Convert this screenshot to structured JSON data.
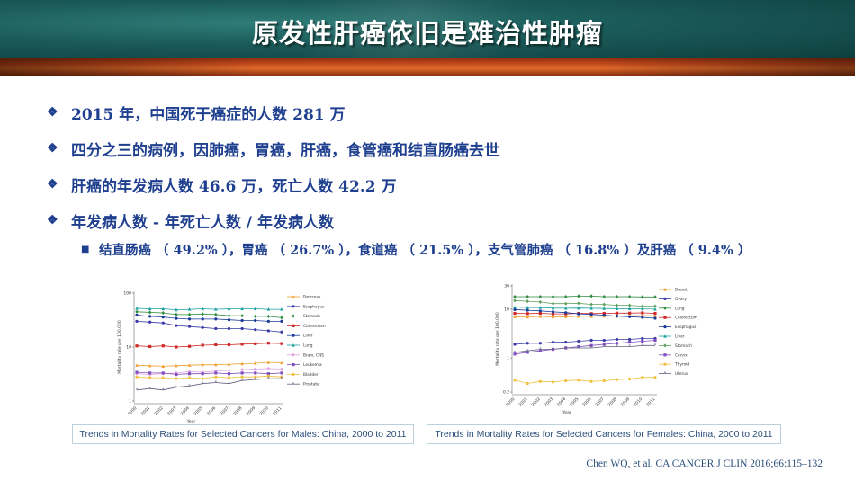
{
  "slide": {
    "title": "原发性肝癌依旧是难治性肿瘤",
    "bullets": [
      "2015 年，中国死于癌症的人数 281 万",
      "四分之三的病例，因肺癌，胃癌，肝癌，食管癌和结直肠癌去世",
      "肝癌的年发病人数 46.6 万，死亡人数 42.2 万",
      "年发病人数 - 年死亡人数 / 年发病人数"
    ],
    "sub_bullet": "结直肠癌 （ 49.2% ），胃癌 （ 26.7% ），食道癌 （ 21.5% ），支气管肺癌 （ 16.8% ）及肝癌 （ 9.4% ）",
    "bullet_marker": "❖",
    "sub_marker": "■",
    "citation": "Chen WQ, et al. CA CANCER J CLIN 2016;66:115–132"
  },
  "chart_data": [
    {
      "type": "line",
      "caption": "Trends in Mortality Rates for Selected Cancers for Males: China, 2000 to 2011",
      "xlabel": "Year",
      "ylabel": "Mortality rate per 100,000",
      "y_scale": "log",
      "ylim": [
        1,
        100
      ],
      "y_ticks": [
        "1",
        "10",
        "100"
      ],
      "x": [
        "2000",
        "2001",
        "2002",
        "2003",
        "2004",
        "2005",
        "2006",
        "2007",
        "2008",
        "2009",
        "2010",
        "2011"
      ],
      "legend_position": "right",
      "series": [
        {
          "name": "Pancreas",
          "color": "#f0a030",
          "marker": "triangle",
          "values": [
            4.6,
            4.5,
            4.4,
            4.5,
            4.6,
            4.7,
            4.7,
            4.8,
            4.9,
            5.0,
            5.2,
            5.1
          ]
        },
        {
          "name": "Esophagus",
          "color": "#3a3aa8",
          "marker": "circle",
          "values": [
            30,
            29,
            28,
            25,
            24,
            23,
            22,
            22,
            22,
            21,
            20,
            19
          ]
        },
        {
          "name": "Stomach",
          "color": "#2e8b3e",
          "marker": "diamond",
          "values": [
            45,
            44,
            43,
            40,
            40,
            41,
            40,
            38,
            38,
            37,
            37,
            35
          ]
        },
        {
          "name": "Colorectum",
          "color": "#d02828",
          "marker": "square",
          "values": [
            10.5,
            10.2,
            10.5,
            10.0,
            10.3,
            10.8,
            11.0,
            11.0,
            11.3,
            11.5,
            11.8,
            11.6
          ]
        },
        {
          "name": "Liver",
          "color": "#1a3a9a",
          "marker": "circle",
          "values": [
            39,
            37,
            36,
            34,
            33,
            33,
            33,
            32,
            31,
            31,
            30,
            30
          ]
        },
        {
          "name": "Lung",
          "color": "#1aa0a0",
          "marker": "triangle",
          "values": [
            52,
            51,
            51,
            49,
            50,
            51,
            50,
            51,
            51,
            51,
            50,
            50
          ]
        },
        {
          "name": "Brain, CNS",
          "color": "#e0a0e0",
          "marker": "diamond",
          "values": [
            3.2,
            3.1,
            3.2,
            3.3,
            3.5,
            3.4,
            3.6,
            3.7,
            3.8,
            3.9,
            4.0,
            3.9
          ]
        },
        {
          "name": "Leukemia",
          "color": "#8050c0",
          "marker": "square",
          "values": [
            3.4,
            3.3,
            3.3,
            3.1,
            3.2,
            3.2,
            3.3,
            3.2,
            3.3,
            3.3,
            3.2,
            3.3
          ]
        },
        {
          "name": "Bladder",
          "color": "#f0c040",
          "marker": "circle",
          "values": [
            2.8,
            2.7,
            2.7,
            2.6,
            2.7,
            2.6,
            2.8,
            2.7,
            2.8,
            2.8,
            2.9,
            2.8
          ]
        },
        {
          "name": "Prostate",
          "color": "#606080",
          "marker": "star",
          "values": [
            1.6,
            1.7,
            1.6,
            1.8,
            1.9,
            2.1,
            2.2,
            2.1,
            2.4,
            2.5,
            2.6,
            2.6
          ]
        }
      ]
    },
    {
      "type": "line",
      "caption": "Trends in Mortality Rates for Selected Cancers for Females: China, 2000 to 2011",
      "xlabel": "Year",
      "ylabel": "Mortality rate per 100,000",
      "y_scale": "log",
      "ylim": [
        0.2,
        30
      ],
      "y_ticks": [
        "0.2",
        "1",
        "10",
        "30"
      ],
      "x": [
        "2000",
        "2001",
        "2002",
        "2003",
        "2004",
        "2005",
        "2006",
        "2007",
        "2008",
        "2009",
        "2010",
        "2011"
      ],
      "legend_position": "right",
      "series": [
        {
          "name": "Breast",
          "color": "#f0a030",
          "marker": "triangle",
          "values": [
            7.0,
            6.9,
            7.1,
            6.9,
            7.0,
            7.1,
            7.1,
            7.2,
            7.2,
            7.3,
            7.4,
            7.3
          ]
        },
        {
          "name": "Ovary",
          "color": "#3a3aa8",
          "marker": "circle",
          "values": [
            1.9,
            2.0,
            2.0,
            2.1,
            2.1,
            2.2,
            2.3,
            2.3,
            2.4,
            2.4,
            2.5,
            2.5
          ]
        },
        {
          "name": "Lung",
          "color": "#2e8b3e",
          "marker": "diamond",
          "values": [
            18,
            18,
            18,
            18,
            18,
            18.5,
            18.5,
            18,
            18,
            18,
            17.8,
            17.8
          ]
        },
        {
          "name": "Colorectum",
          "color": "#d02828",
          "marker": "square",
          "values": [
            8.2,
            8.1,
            8.2,
            8.0,
            8.0,
            8.2,
            8.1,
            8.2,
            8.3,
            8.3,
            8.4,
            8.2
          ]
        },
        {
          "name": "Esophagus",
          "color": "#1a3a9a",
          "marker": "circle",
          "values": [
            9.8,
            9.5,
            9.2,
            8.8,
            8.5,
            8.0,
            7.8,
            7.5,
            7.2,
            7.0,
            6.8,
            6.5
          ]
        },
        {
          "name": "Liver",
          "color": "#1aa0a0",
          "marker": "triangle",
          "values": [
            11,
            10.8,
            10.8,
            10.5,
            10.4,
            10.5,
            10.4,
            10.3,
            10.2,
            10.2,
            10.1,
            10.0
          ]
        },
        {
          "name": "Stomach",
          "color": "#60a060",
          "marker": "diamond",
          "values": [
            15,
            14.5,
            14,
            13,
            13,
            13.2,
            12.5,
            12.5,
            12,
            12,
            11.5,
            11.5
          ]
        },
        {
          "name": "Cervix",
          "color": "#8050c0",
          "marker": "square",
          "values": [
            1.2,
            1.3,
            1.4,
            1.5,
            1.6,
            1.7,
            1.8,
            1.9,
            2.0,
            2.1,
            2.2,
            2.3
          ]
        },
        {
          "name": "Thyroid",
          "color": "#f0c040",
          "marker": "circle",
          "values": [
            0.35,
            0.3,
            0.33,
            0.32,
            0.34,
            0.35,
            0.33,
            0.34,
            0.36,
            0.37,
            0.4,
            0.4
          ]
        },
        {
          "name": "Uterus",
          "color": "#606080",
          "marker": "star",
          "values": [
            1.3,
            1.4,
            1.5,
            1.5,
            1.6,
            1.6,
            1.6,
            1.7,
            1.7,
            1.7,
            1.8,
            1.8
          ]
        }
      ]
    }
  ]
}
